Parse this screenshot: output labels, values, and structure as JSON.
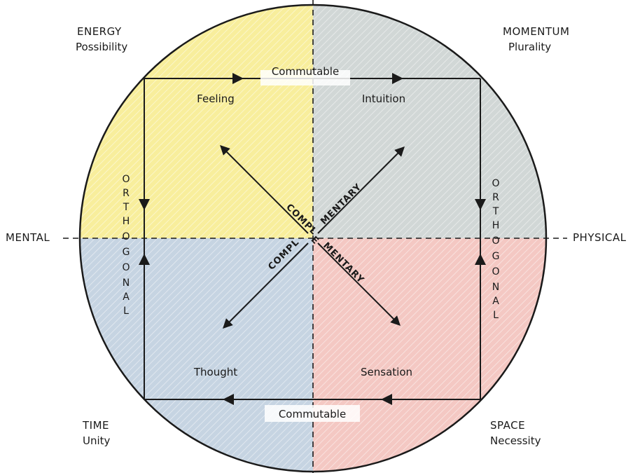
{
  "corners": {
    "top_left": {
      "line1": "ENERGY",
      "line2": "Possibility"
    },
    "top_right": {
      "line1": "MOMENTUM",
      "line2": "Plurality"
    },
    "bottom_left": {
      "line1": "TIME",
      "line2": "Unity"
    },
    "bottom_right": {
      "line1": "SPACE",
      "line2": "Necessity"
    }
  },
  "axes": {
    "left": "MENTAL",
    "right": "PHYSICAL"
  },
  "quadrants": {
    "top_left": "Feeling",
    "top_right": "Intuition",
    "bottom_left": "Thought",
    "bottom_right": "Sensation"
  },
  "edges": {
    "top": "Commutable",
    "bottom": "Commutable",
    "left_letters": [
      "O",
      "R",
      "T",
      "H",
      "O",
      "G",
      "O",
      "N",
      "A",
      "L"
    ],
    "right_letters": [
      "O",
      "R",
      "T",
      "H",
      "O",
      "G",
      "O",
      "N",
      "A",
      "L"
    ]
  },
  "diagonals": {
    "upper_left": "COMPL",
    "upper_right": "MENTARY",
    "center": "E",
    "lower_left": "COMPL",
    "lower_right": "MENTARY"
  },
  "colors": {
    "top_left": "#f3e04a",
    "top_right": "#9aa7a5",
    "bottom_left": "#8ea9c6",
    "bottom_right": "#e6867a",
    "line": "#1a1a1a"
  }
}
